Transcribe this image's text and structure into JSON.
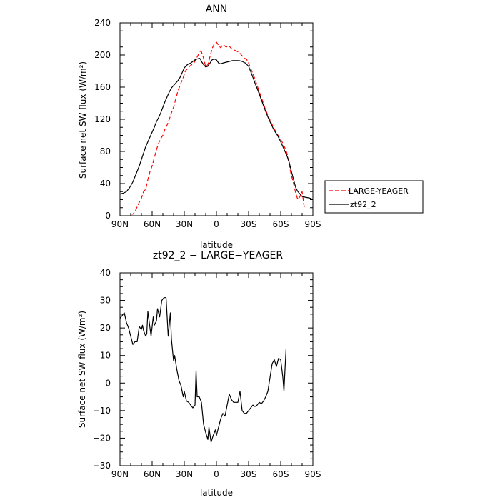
{
  "chart_data": [
    {
      "type": "line",
      "title": "ANN",
      "xlabel": "latitude",
      "ylabel": "Surface net SW flux (W/m²)",
      "x_tick_labels": [
        "90N",
        "60N",
        "30N",
        "0",
        "30S",
        "60S",
        "90S"
      ],
      "x_tick_values": [
        90,
        60,
        30,
        0,
        -30,
        -60,
        -90
      ],
      "xlim": [
        90,
        -90
      ],
      "ylim": [
        0,
        240
      ],
      "y_ticks": [
        0,
        40,
        80,
        120,
        160,
        200,
        240
      ],
      "legend_position": "right",
      "series": [
        {
          "name": "LARGE-YEAGER",
          "color": "#ff0000",
          "dash": "dashed",
          "points": [
            [
              80,
              2
            ],
            [
              78,
              2
            ],
            [
              76,
              5
            ],
            [
              73,
              14
            ],
            [
              70,
              22
            ],
            [
              68,
              30
            ],
            [
              66,
              33
            ],
            [
              64,
              45
            ],
            [
              62,
              55
            ],
            [
              60,
              62
            ],
            [
              58,
              72
            ],
            [
              56,
              82
            ],
            [
              54,
              90
            ],
            [
              52,
              96
            ],
            [
              50,
              100
            ],
            [
              48,
              108
            ],
            [
              46,
              113
            ],
            [
              44,
              120
            ],
            [
              42,
              128
            ],
            [
              40,
              135
            ],
            [
              38,
              145
            ],
            [
              36,
              155
            ],
            [
              34,
              162
            ],
            [
              31,
              172
            ],
            [
              29,
              180
            ],
            [
              27,
              183
            ],
            [
              25,
              186
            ],
            [
              23,
              188
            ],
            [
              21,
              190
            ],
            [
              19,
              195
            ],
            [
              17,
              200
            ],
            [
              16,
              203
            ],
            [
              15,
              205
            ],
            [
              14,
              204
            ],
            [
              12,
              196
            ],
            [
              10,
              185
            ],
            [
              8,
              188
            ],
            [
              6,
              198
            ],
            [
              4,
              208
            ],
            [
              2,
              214
            ],
            [
              0,
              216
            ],
            [
              -2,
              212
            ],
            [
              -4,
              209
            ],
            [
              -6,
              213
            ],
            [
              -9,
              210
            ],
            [
              -12,
              211
            ],
            [
              -14,
              208
            ],
            [
              -17,
              206
            ],
            [
              -20,
              204
            ],
            [
              -22,
              202
            ],
            [
              -24,
              199
            ],
            [
              -26,
              196
            ],
            [
              -28,
              195
            ],
            [
              -30,
              190
            ],
            [
              -33,
              180
            ],
            [
              -36,
              170
            ],
            [
              -39,
              158
            ],
            [
              -42,
              147
            ],
            [
              -45,
              135
            ],
            [
              -48,
              125
            ],
            [
              -51,
              116
            ],
            [
              -54,
              108
            ],
            [
              -57,
              101
            ],
            [
              -60,
              95
            ],
            [
              -62,
              90
            ],
            [
              -64,
              84
            ],
            [
              -66,
              77
            ],
            [
              -68,
              62
            ],
            [
              -70,
              50
            ],
            [
              -72,
              40
            ],
            [
              -74,
              28
            ],
            [
              -76,
              20
            ],
            [
              -78,
              24
            ],
            [
              -80,
              30
            ],
            [
              -81,
              20
            ],
            [
              -82,
              10
            ]
          ]
        },
        {
          "name": "zt92_2",
          "color": "#000000",
          "dash": "solid",
          "points": [
            [
              90,
              27
            ],
            [
              87,
              28
            ],
            [
              84,
              30
            ],
            [
              81,
              35
            ],
            [
              78,
              42
            ],
            [
              75,
              52
            ],
            [
              72,
              62
            ],
            [
              70,
              70
            ],
            [
              68,
              78
            ],
            [
              66,
              86
            ],
            [
              64,
              92
            ],
            [
              62,
              98
            ],
            [
              60,
              104
            ],
            [
              58,
              110
            ],
            [
              56,
              117
            ],
            [
              54,
              122
            ],
            [
              52,
              128
            ],
            [
              50,
              135
            ],
            [
              48,
              142
            ],
            [
              46,
              148
            ],
            [
              44,
              154
            ],
            [
              42,
              159
            ],
            [
              40,
              162
            ],
            [
              38,
              165
            ],
            [
              36,
              168
            ],
            [
              34,
              172
            ],
            [
              32,
              178
            ],
            [
              30,
              184
            ],
            [
              28,
              187
            ],
            [
              26,
              189
            ],
            [
              24,
              190
            ],
            [
              22,
              192
            ],
            [
              20,
              194
            ],
            [
              18,
              195
            ],
            [
              16,
              196
            ],
            [
              15,
              195
            ],
            [
              14,
              192
            ],
            [
              12,
              188
            ],
            [
              10,
              185
            ],
            [
              8,
              186
            ],
            [
              6,
              190
            ],
            [
              4,
              194
            ],
            [
              2,
              195
            ],
            [
              0,
              194
            ],
            [
              -2,
              190
            ],
            [
              -4,
              189
            ],
            [
              -6,
              190
            ],
            [
              -9,
              191
            ],
            [
              -12,
              192
            ],
            [
              -15,
              193
            ],
            [
              -18,
              193
            ],
            [
              -21,
              193
            ],
            [
              -24,
              192
            ],
            [
              -27,
              190
            ],
            [
              -30,
              186
            ],
            [
              -33,
              176
            ],
            [
              -36,
              165
            ],
            [
              -39,
              155
            ],
            [
              -42,
              144
            ],
            [
              -45,
              133
            ],
            [
              -48,
              123
            ],
            [
              -51,
              114
            ],
            [
              -54,
              106
            ],
            [
              -57,
              100
            ],
            [
              -60,
              92
            ],
            [
              -62,
              86
            ],
            [
              -64,
              80
            ],
            [
              -66,
              74
            ],
            [
              -68,
              66
            ],
            [
              -70,
              55
            ],
            [
              -72,
              45
            ],
            [
              -74,
              35
            ],
            [
              -76,
              30
            ],
            [
              -78,
              27
            ],
            [
              -80,
              24
            ],
            [
              -83,
              23
            ],
            [
              -87,
              22
            ],
            [
              -89,
              21
            ]
          ]
        }
      ]
    },
    {
      "type": "line",
      "title": "zt92_2 − LARGE−YEAGER",
      "xlabel": "latitude",
      "ylabel": "Surface net SW flux (W/m²)",
      "x_tick_labels": [
        "90N",
        "60N",
        "30N",
        "0",
        "30S",
        "60S",
        "90S"
      ],
      "x_tick_values": [
        90,
        60,
        30,
        0,
        -30,
        -60,
        -90
      ],
      "xlim": [
        90,
        -90
      ],
      "ylim": [
        -30,
        40
      ],
      "y_ticks": [
        -30,
        -20,
        -10,
        0,
        10,
        20,
        30,
        40
      ],
      "series": [
        {
          "name": "",
          "color": "#000000",
          "dash": "solid",
          "points": [
            [
              90,
              23.5
            ],
            [
              88,
              24.5
            ],
            [
              86,
              25.5
            ],
            [
              84,
              22
            ],
            [
              82,
              20
            ],
            [
              80,
              17
            ],
            [
              78,
              14
            ],
            [
              76,
              15
            ],
            [
              74,
              15
            ],
            [
              72,
              20.5
            ],
            [
              70,
              19.5
            ],
            [
              69,
              21
            ],
            [
              68,
              19
            ],
            [
              66,
              17
            ],
            [
              65,
              18
            ],
            [
              64,
              26
            ],
            [
              62,
              20
            ],
            [
              61,
              17
            ],
            [
              59,
              24
            ],
            [
              58,
              21
            ],
            [
              56,
              22.5
            ],
            [
              55,
              27
            ],
            [
              53,
              24
            ],
            [
              51,
              30
            ],
            [
              49,
              31
            ],
            [
              47,
              31
            ],
            [
              45,
              17
            ],
            [
              43,
              25.5
            ],
            [
              42,
              16
            ],
            [
              40,
              8
            ],
            [
              39,
              10
            ],
            [
              37,
              5
            ],
            [
              35,
              1
            ],
            [
              33,
              -1
            ],
            [
              31,
              -5
            ],
            [
              30,
              -3
            ],
            [
              28,
              -6.5
            ],
            [
              26,
              -7
            ],
            [
              24,
              -8
            ],
            [
              22,
              -9
            ],
            [
              20,
              -8
            ],
            [
              19,
              4.5
            ],
            [
              18,
              -5
            ],
            [
              16,
              -5
            ],
            [
              14,
              -7
            ],
            [
              12,
              -15
            ],
            [
              10,
              -18
            ],
            [
              8,
              -20.5
            ],
            [
              7,
              -16
            ],
            [
              5,
              -21.5
            ],
            [
              3,
              -19
            ],
            [
              1,
              -17
            ],
            [
              0,
              -19
            ],
            [
              -2,
              -16
            ],
            [
              -4,
              -13
            ],
            [
              -6,
              -11
            ],
            [
              -8,
              -12
            ],
            [
              -10,
              -8
            ],
            [
              -12,
              -4
            ],
            [
              -14,
              -6
            ],
            [
              -16,
              -7
            ],
            [
              -18,
              -7
            ],
            [
              -20,
              -7
            ],
            [
              -22,
              -3
            ],
            [
              -24,
              -10
            ],
            [
              -26,
              -11
            ],
            [
              -28,
              -11
            ],
            [
              -30,
              -10
            ],
            [
              -32,
              -9
            ],
            [
              -34,
              -8
            ],
            [
              -36,
              -8.5
            ],
            [
              -38,
              -8
            ],
            [
              -40,
              -7
            ],
            [
              -42,
              -7.5
            ],
            [
              -44,
              -6.5
            ],
            [
              -46,
              -5
            ],
            [
              -48,
              -3
            ],
            [
              -50,
              2
            ],
            [
              -52,
              7
            ],
            [
              -54,
              8.5
            ],
            [
              -56,
              6
            ],
            [
              -58,
              9
            ],
            [
              -60,
              8.5
            ],
            [
              -62,
              2
            ],
            [
              -63,
              -3
            ],
            [
              -64,
              5
            ],
            [
              -65,
              12.5
            ]
          ]
        }
      ]
    }
  ]
}
